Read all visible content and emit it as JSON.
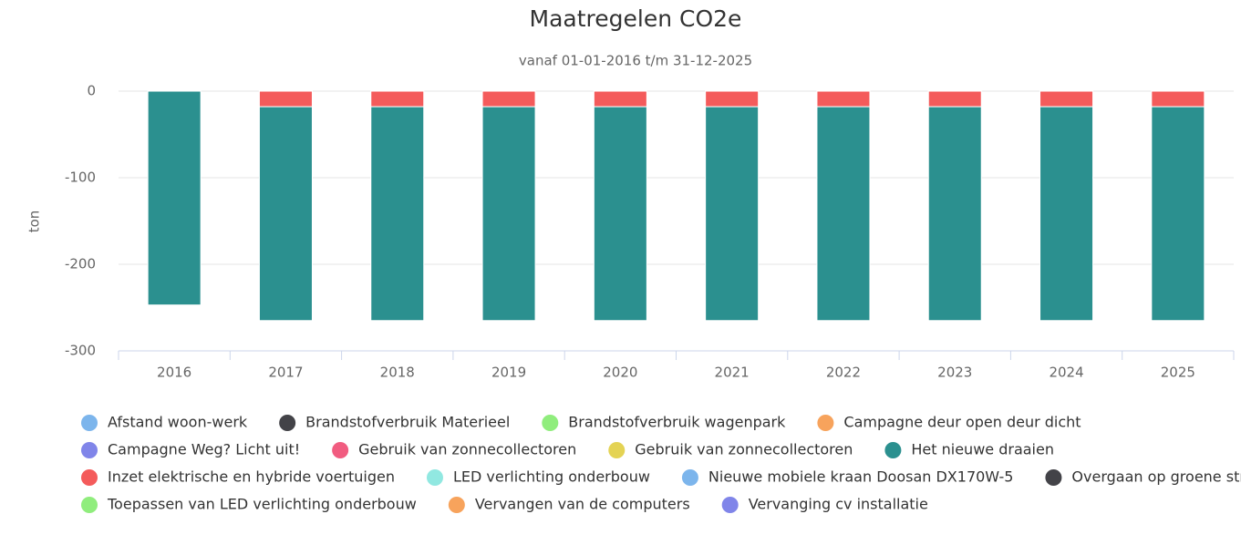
{
  "chart_data": {
    "type": "bar",
    "stacked": true,
    "title": "Maatregelen CO2e",
    "subtitle": "vanaf 01-01-2016 t/m 31-12-2025",
    "y_label": "ton",
    "categories": [
      "2016",
      "2017",
      "2018",
      "2019",
      "2020",
      "2021",
      "2022",
      "2023",
      "2024",
      "2025"
    ],
    "ylim": [
      -300,
      0
    ],
    "yticks": [
      0,
      -100,
      -200,
      -300
    ],
    "grid": true,
    "legend": "bottom",
    "series": [
      {
        "name": "Afstand woon-werk",
        "color": "#7cb5ec",
        "values": [
          0,
          0,
          0,
          0,
          0,
          0,
          0,
          0,
          0,
          0
        ]
      },
      {
        "name": "Brandstofverbruik Materieel",
        "color": "#434348",
        "values": [
          0,
          0,
          0,
          0,
          0,
          0,
          0,
          0,
          0,
          0
        ]
      },
      {
        "name": "Brandstofverbruik wagenpark",
        "color": "#90ed7d",
        "values": [
          0,
          0,
          0,
          0,
          0,
          0,
          0,
          0,
          0,
          0
        ]
      },
      {
        "name": "Campagne deur open deur dicht",
        "color": "#f7a35c",
        "values": [
          0,
          0,
          0,
          0,
          0,
          0,
          0,
          0,
          0,
          0
        ]
      },
      {
        "name": "Campagne Weg? Licht uit!",
        "color": "#8085e9",
        "values": [
          0,
          0,
          0,
          0,
          0,
          0,
          0,
          0,
          0,
          0
        ]
      },
      {
        "name": "Gebruik van zonnecollectoren",
        "color": "#f15c80",
        "values": [
          0,
          0,
          0,
          0,
          0,
          0,
          0,
          0,
          0,
          0
        ]
      },
      {
        "name": "Gebruik van zonnecollectoren",
        "color": "#e4d354",
        "values": [
          0,
          0,
          0,
          0,
          0,
          0,
          0,
          0,
          0,
          0
        ]
      },
      {
        "name": "Het nieuwe draaien",
        "color": "#2b908f",
        "values": [
          -247,
          -247,
          -247,
          -247,
          -247,
          -247,
          -247,
          -247,
          -247,
          -247
        ]
      },
      {
        "name": "Inzet elektrische en hybride voertuigen",
        "color": "#f45b5b",
        "values": [
          0,
          -18,
          -18,
          -18,
          -18,
          -18,
          -18,
          -18,
          -18,
          -18
        ]
      },
      {
        "name": "LED verlichting onderbouw",
        "color": "#91e8e1",
        "values": [
          0,
          0,
          0,
          0,
          0,
          0,
          0,
          0,
          0,
          0
        ]
      },
      {
        "name": "Nieuwe mobiele kraan Doosan DX170W-5",
        "color": "#7cb5ec",
        "values": [
          0,
          0,
          0,
          0,
          0,
          0,
          0,
          0,
          0,
          0
        ]
      },
      {
        "name": "Overgaan op groene stroom",
        "color": "#434348",
        "values": [
          0,
          0,
          0,
          0,
          0,
          0,
          0,
          0,
          0,
          0
        ]
      },
      {
        "name": "Toepassen van LED verlichting onderbouw",
        "color": "#90ed7d",
        "values": [
          0,
          0,
          0,
          0,
          0,
          0,
          0,
          0,
          0,
          0
        ]
      },
      {
        "name": "Vervangen van de computers",
        "color": "#f7a35c",
        "values": [
          0,
          0,
          0,
          0,
          0,
          0,
          0,
          0,
          0,
          0
        ]
      },
      {
        "name": "Vervanging cv installatie",
        "color": "#8085e9",
        "values": [
          0,
          0,
          0,
          0,
          0,
          0,
          0,
          0,
          0,
          0
        ]
      }
    ]
  }
}
